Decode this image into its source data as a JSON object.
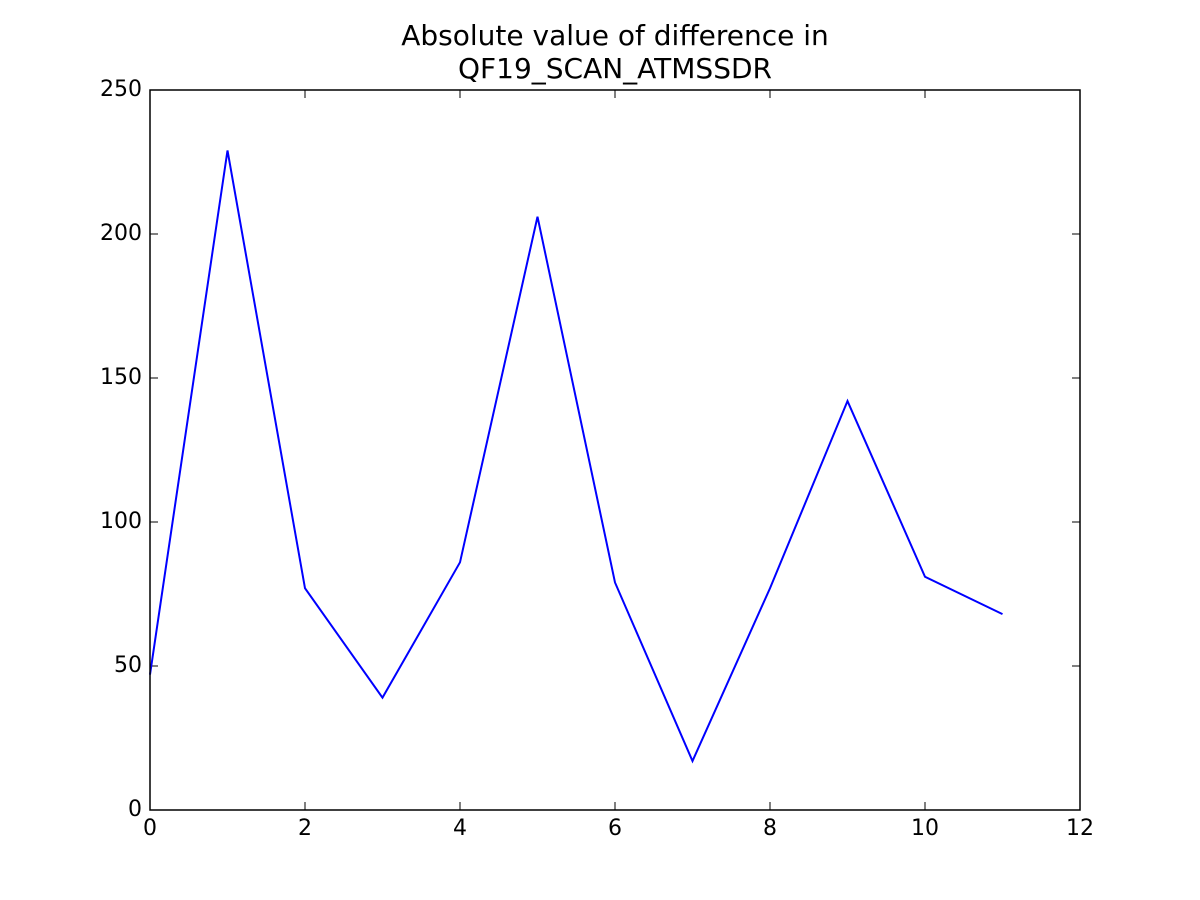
{
  "chart_data": {
    "type": "line",
    "title": [
      "Absolute value of difference in",
      "QF19_SCAN_ATMSSDR"
    ],
    "x": [
      0,
      1,
      2,
      3,
      4,
      5,
      6,
      7,
      8,
      9,
      10,
      11
    ],
    "series": [
      {
        "color": "#0000ff",
        "values": [
          47,
          229,
          77,
          39,
          86,
          206,
          79,
          17,
          77,
          142,
          81,
          68
        ]
      }
    ],
    "xlim": [
      0,
      12
    ],
    "xticks": [
      0,
      2,
      4,
      6,
      8,
      10,
      12
    ],
    "ylim": [
      0,
      250
    ],
    "yticks": [
      0,
      50,
      100,
      150,
      200,
      250
    ]
  }
}
